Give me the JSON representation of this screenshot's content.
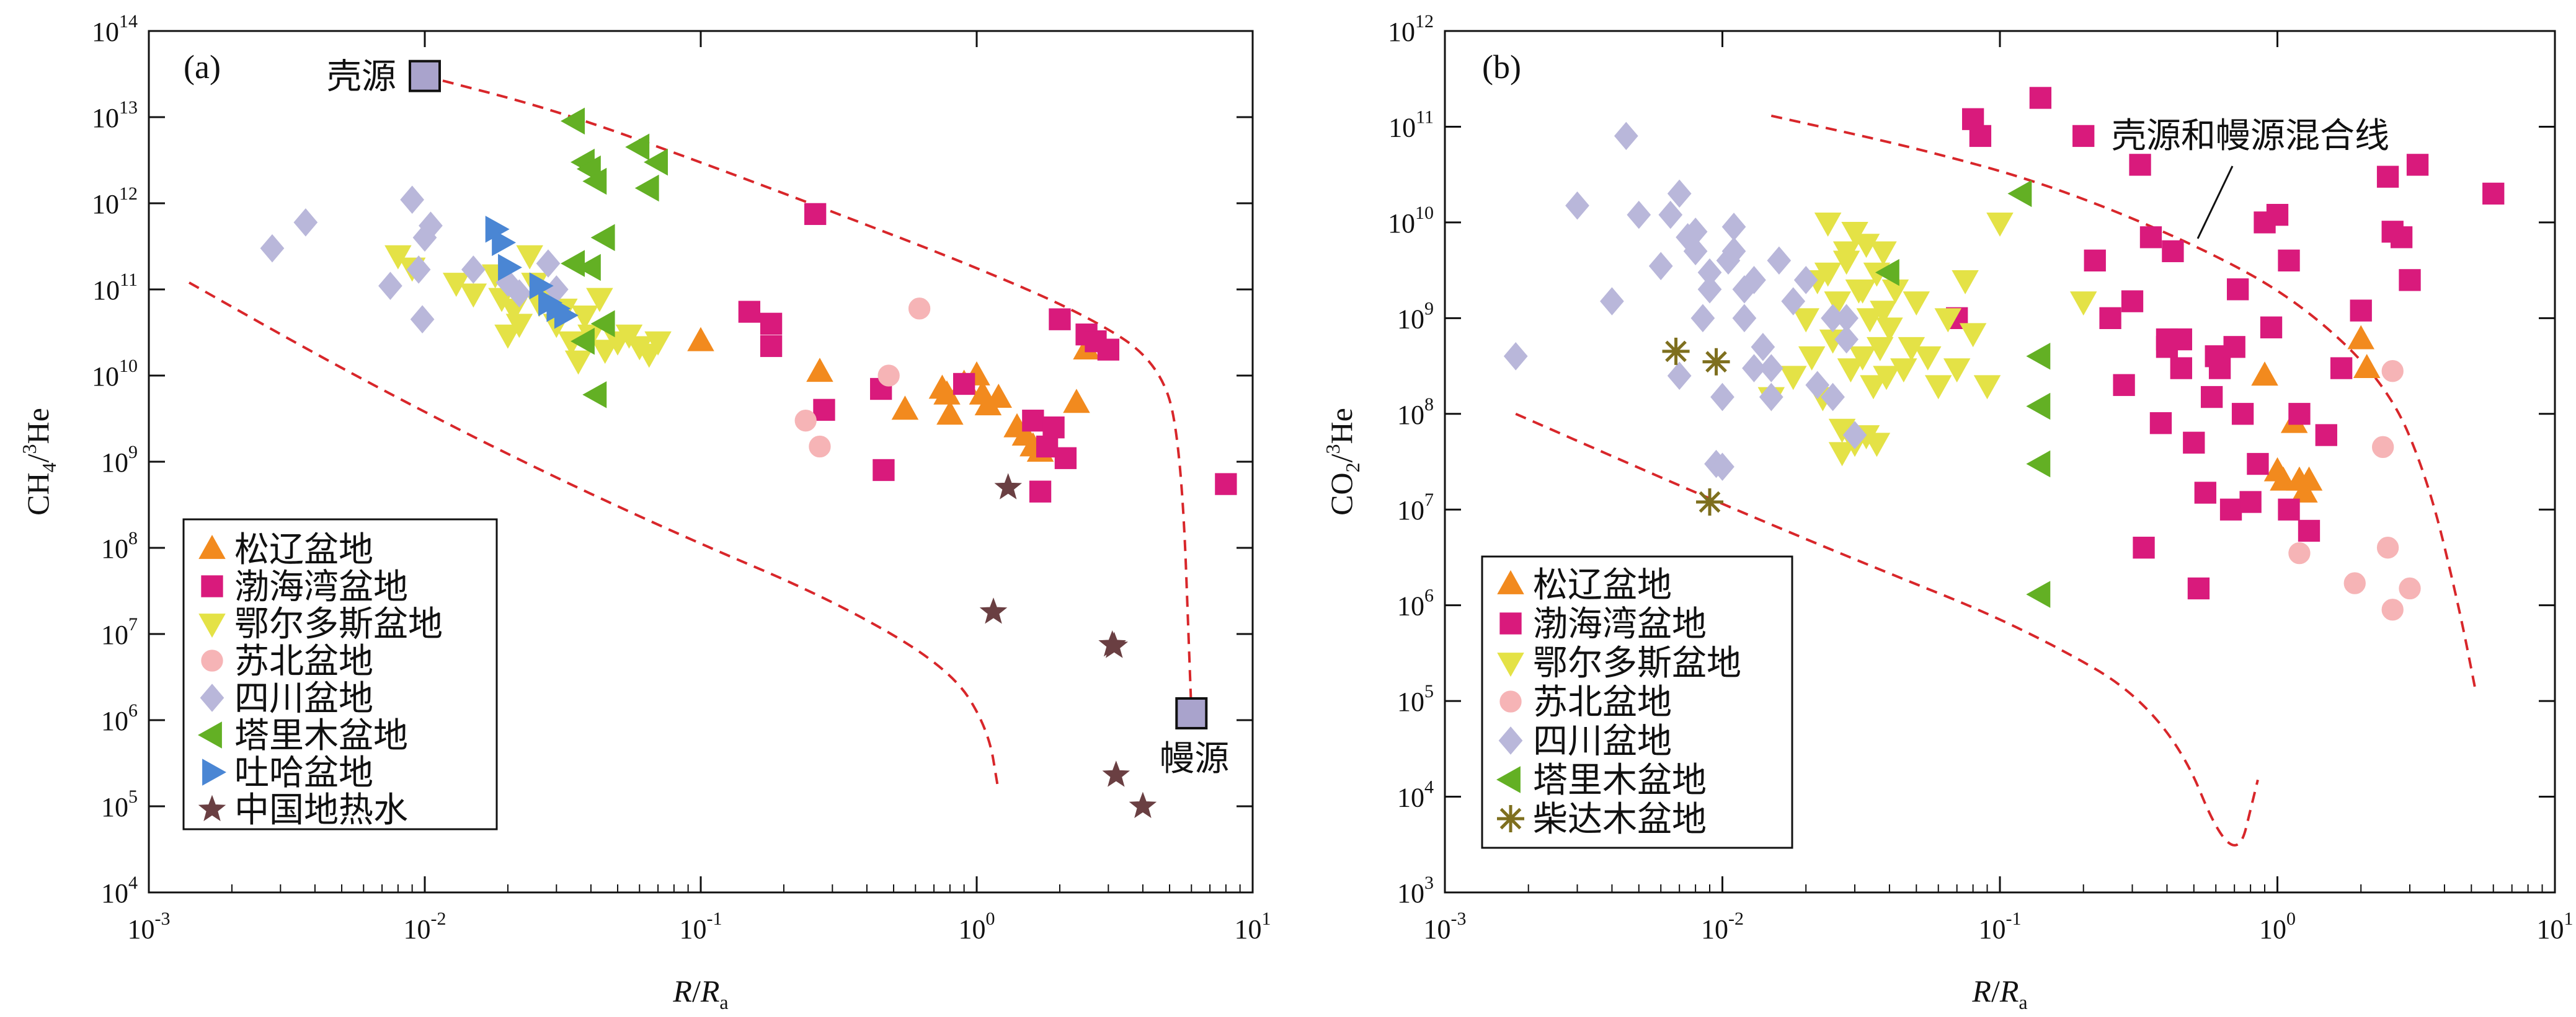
{
  "colors": {
    "songliao": "#F28A1E",
    "bohaiwan": "#D91A7C",
    "ordos": "#E4E246",
    "subei": "#F6B4B6",
    "sichuan": "#B9B7DA",
    "tarim": "#63B024",
    "tuha": "#4A86D4",
    "geothermal": "#6A3F42",
    "qaidam": "#7E6F1E",
    "endmember_fill": "#A9A3CC",
    "mixing_line": "#D8262A"
  },
  "chart_data": [
    {
      "type": "scatter",
      "panel": "(a)",
      "xlabel": "R/Ra",
      "ylabel": "CH4/3He",
      "xscale": "log",
      "yscale": "log",
      "xlim": [
        0.001,
        10
      ],
      "ylim": [
        10000,
        100000000000000
      ],
      "x_ticks": [
        {
          "base": "10",
          "exp": "-3"
        },
        {
          "base": "10",
          "exp": "-2"
        },
        {
          "base": "10",
          "exp": "-1"
        },
        {
          "base": "10",
          "exp": "0"
        },
        {
          "base": "10",
          "exp": "1"
        }
      ],
      "y_ticks": [
        {
          "base": "10",
          "exp": "4"
        },
        {
          "base": "10",
          "exp": "5"
        },
        {
          "base": "10",
          "exp": "6"
        },
        {
          "base": "10",
          "exp": "7"
        },
        {
          "base": "10",
          "exp": "8"
        },
        {
          "base": "10",
          "exp": "9"
        },
        {
          "base": "10",
          "exp": "10"
        },
        {
          "base": "10",
          "exp": "11"
        },
        {
          "base": "10",
          "exp": "12"
        },
        {
          "base": "10",
          "exp": "13"
        },
        {
          "base": "10",
          "exp": "14"
        }
      ],
      "grid": false,
      "legend_position": "bottom-left",
      "endmembers": [
        {
          "name": "壳源",
          "x": 0.01,
          "y": 30000000000000
        },
        {
          "name": "幔源",
          "x": 6,
          "y": 1200000
        }
      ],
      "mixing_lines": [
        {
          "x": [
            0.01,
            0.03,
            0.1,
            0.3,
            1,
            2.5,
            4.5,
            5.5,
            6
          ],
          "y": [
            30000000000000,
            12000000000000,
            3000000000000,
            800000000000,
            180000000000,
            50000000000,
            15000000000,
            2000000000,
            1200000
          ]
        },
        {
          "x": [
            0.0014,
            0.005,
            0.02,
            0.08,
            0.3,
            0.8,
            1.1,
            1.2
          ],
          "y": [
            120000000000,
            12000000000,
            1200000000,
            150000000,
            25000000,
            4000000,
            800000,
            150000
          ]
        }
      ],
      "series": [
        {
          "name": "松辽盆地",
          "marker": "triangle-up",
          "color_key": "songliao",
          "x": [
            0.1,
            0.27,
            0.55,
            0.75,
            0.8,
            0.9,
            1.0,
            1.05,
            1.1,
            1.2,
            1.4,
            1.5,
            1.6,
            1.7,
            0.78,
            2.3,
            2.5
          ],
          "y": [
            25000000000,
            11000000000,
            4000000000,
            7000000000,
            3500000000,
            8000000000,
            10000000000,
            6000000000,
            4500000000,
            5500000000,
            2500000000,
            2000000000,
            1500000000,
            1300000000,
            6000000000,
            4800000000,
            20000000000
          ]
        },
        {
          "name": "渤海湾盆地",
          "marker": "square",
          "color_key": "bohaiwan",
          "x": [
            0.15,
            0.18,
            0.18,
            0.26,
            0.28,
            0.45,
            0.46,
            0.9,
            1.6,
            1.7,
            1.8,
            1.9,
            2.0,
            2.1,
            2.5,
            2.7,
            3.0,
            8.0
          ],
          "y": [
            55000000000,
            40000000000,
            22000000000,
            750000000000,
            4000000000,
            7000000000,
            800000000,
            8000000000,
            3000000000,
            450000000,
            1500000000,
            2500000000,
            45000000000,
            1100000000,
            30000000000,
            25000000000,
            20000000000,
            550000000
          ]
        },
        {
          "name": "鄂尔多斯盆地",
          "marker": "triangle-down",
          "color_key": "ordos",
          "x": [
            0.008,
            0.009,
            0.013,
            0.015,
            0.018,
            0.019,
            0.02,
            0.021,
            0.022,
            0.024,
            0.025,
            0.026,
            0.028,
            0.03,
            0.032,
            0.034,
            0.036,
            0.038,
            0.04,
            0.043,
            0.045,
            0.05,
            0.055,
            0.06,
            0.065,
            0.07
          ],
          "y": [
            250000000000,
            180000000000,
            120000000000,
            90000000000,
            150000000000,
            80000000000,
            30000000000,
            60000000000,
            40000000000,
            250000000000,
            120000000000,
            70000000000,
            90000000000,
            40000000000,
            60000000000,
            25000000000,
            15000000000,
            50000000000,
            30000000000,
            80000000000,
            20000000000,
            25000000000,
            30000000000,
            22000000000,
            18000000000,
            25000000000
          ]
        },
        {
          "name": "苏北盆地",
          "marker": "circle",
          "color_key": "subei",
          "x": [
            0.24,
            0.27,
            0.48,
            0.62
          ],
          "y": [
            3000000000,
            1500000000,
            10000000000,
            60000000000
          ]
        },
        {
          "name": "四川盆地",
          "marker": "diamond",
          "color_key": "sichuan",
          "x": [
            0.0028,
            0.0037,
            0.0075,
            0.009,
            0.0095,
            0.0098,
            0.01,
            0.0105,
            0.015,
            0.02,
            0.022,
            0.028,
            0.03
          ],
          "y": [
            300000000000,
            600000000000,
            110000000000,
            1100000000000,
            170000000000,
            45000000000,
            400000000000,
            550000000000,
            170000000000,
            120000000000,
            90000000000,
            200000000000,
            100000000000
          ]
        },
        {
          "name": "塔里木盆地",
          "marker": "triangle-left",
          "color_key": "tarim",
          "x": [
            0.035,
            0.038,
            0.04,
            0.042,
            0.045,
            0.06,
            0.065,
            0.07,
            0.035,
            0.04,
            0.045,
            0.038,
            0.042
          ],
          "y": [
            9000000000000,
            3000000000000,
            2500000000000,
            1800000000000,
            400000000000,
            4500000000000,
            1500000000000,
            3000000000000,
            200000000000,
            180000000000,
            40000000000,
            25000000000,
            6000000000
          ]
        },
        {
          "name": "吐哈盆地",
          "marker": "triangle-right",
          "color_key": "tuha",
          "x": [
            0.018,
            0.019,
            0.02,
            0.026,
            0.028,
            0.03,
            0.032
          ],
          "y": [
            500000000000,
            350000000000,
            180000000000,
            110000000000,
            70000000000,
            60000000000,
            50000000000
          ]
        },
        {
          "name": "中国地热水",
          "marker": "star",
          "color_key": "geothermal",
          "x": [
            1.15,
            1.3,
            3.1,
            3.15,
            3.2,
            4.0
          ],
          "y": [
            18000000,
            500000000,
            7500000,
            7200000,
            230000,
            100000
          ]
        }
      ]
    },
    {
      "type": "scatter",
      "panel": "(b)",
      "xlabel": "R/Ra",
      "ylabel": "CO2/3He",
      "xscale": "log",
      "yscale": "log",
      "xlim": [
        0.001,
        10
      ],
      "ylim": [
        1000,
        1000000000000
      ],
      "x_ticks": [
        {
          "base": "10",
          "exp": "-3"
        },
        {
          "base": "10",
          "exp": "-2"
        },
        {
          "base": "10",
          "exp": "-1"
        },
        {
          "base": "10",
          "exp": "0"
        },
        {
          "base": "10",
          "exp": "1"
        }
      ],
      "y_ticks": [
        {
          "base": "10",
          "exp": "3"
        },
        {
          "base": "10",
          "exp": "4"
        },
        {
          "base": "10",
          "exp": "5"
        },
        {
          "base": "10",
          "exp": "6"
        },
        {
          "base": "10",
          "exp": "7"
        },
        {
          "base": "10",
          "exp": "8"
        },
        {
          "base": "10",
          "exp": "9"
        },
        {
          "base": "10",
          "exp": "10"
        },
        {
          "base": "10",
          "exp": "11"
        },
        {
          "base": "10",
          "exp": "12"
        }
      ],
      "grid": false,
      "legend_position": "bottom-left",
      "annotations": [
        {
          "text": "壳源和幔源混合线",
          "x": 0.4,
          "y": 40000000000
        }
      ],
      "mixing_lines": [
        {
          "x": [
            0.015,
            0.05,
            0.15,
            0.5,
            1.2,
            2.5,
            3.5,
            4.5,
            5.2
          ],
          "y": [
            130000000000,
            60000000000,
            25000000000,
            6000000000,
            1500000000,
            200000000,
            20000000,
            1000000,
            120000
          ]
        },
        {
          "x": [
            0.0018,
            0.008,
            0.03,
            0.12,
            0.4,
            0.7,
            0.85
          ],
          "y": [
            100000000,
            15000000,
            3000000,
            600000,
            80000,
            1500,
            15000
          ]
        }
      ],
      "series": [
        {
          "name": "松辽盆地",
          "marker": "triangle-up",
          "color_key": "songliao",
          "x": [
            1.0,
            1.05,
            1.15,
            1.2,
            1.25,
            1.3,
            2.0,
            2.1,
            0.9
          ],
          "y": [
            25000000,
            20000000,
            80000000,
            20000000,
            15000000,
            20000000,
            600000000,
            300000000,
            250000000
          ]
        },
        {
          "name": "渤海湾盆地",
          "marker": "square",
          "color_key": "bohaiwan",
          "x": [
            0.07,
            0.08,
            0.085,
            0.14,
            0.2,
            0.22,
            0.25,
            0.28,
            0.3,
            0.32,
            0.35,
            0.38,
            0.4,
            0.42,
            0.45,
            0.5,
            0.55,
            0.6,
            0.62,
            0.68,
            0.7,
            0.72,
            0.75,
            0.8,
            0.85,
            0.9,
            1.0,
            1.1,
            1.2,
            1.3,
            1.5,
            1.7,
            2.0,
            2.5,
            2.6,
            2.8,
            3.0,
            3.2,
            6.0,
            0.33,
            0.4,
            0.45,
            0.52,
            0.58,
            0.95,
            1.1
          ],
          "y": [
            1000000000,
            120000000000,
            80000000000,
            200000000000,
            80000000000,
            4000000000,
            1000000000,
            200000000,
            1500000000,
            40000000000,
            7000000000,
            80000000,
            500000000,
            5000000000,
            600000000,
            50000000,
            15000000,
            400000000,
            300000000,
            10000000,
            500000000,
            2000000000,
            100000000,
            12000000,
            30000000,
            10000000000,
            12000000000,
            4000000000,
            100000000,
            6000000,
            60000000,
            300000000,
            1200000000,
            30000000000,
            8000000000,
            7000000000,
            2500000000,
            40000000000,
            20000000000,
            4000000,
            600000000,
            300000000,
            1500000,
            150000000,
            800000000,
            10000000
          ]
        },
        {
          "name": "鄂尔多斯盆地",
          "marker": "triangle-down",
          "color_key": "ordos",
          "x": [
            0.015,
            0.018,
            0.02,
            0.021,
            0.022,
            0.023,
            0.024,
            0.025,
            0.026,
            0.027,
            0.028,
            0.029,
            0.03,
            0.031,
            0.032,
            0.033,
            0.034,
            0.035,
            0.036,
            0.037,
            0.038,
            0.039,
            0.04,
            0.042,
            0.045,
            0.048,
            0.05,
            0.055,
            0.06,
            0.065,
            0.07,
            0.075,
            0.08,
            0.09,
            0.1,
            0.2,
            0.027,
            0.03,
            0.033,
            0.036,
            0.024,
            0.028,
            0.032,
            0.038
          ],
          "y": [
            150000000,
            250000000,
            1000000000,
            400000000,
            2500000000,
            150000000,
            3000000000,
            600000000,
            1500000000,
            70000000,
            5000000000,
            300000000,
            8000000000,
            2000000000,
            400000000,
            6000000000,
            1000000000,
            200000000,
            3000000000,
            500000000,
            5000000000,
            250000000,
            800000000,
            2000000000,
            300000000,
            500000000,
            1500000000,
            400000000,
            200000000,
            1000000000,
            300000000,
            2500000000,
            700000000,
            200000000,
            10000000000,
            1500000000,
            40000000,
            50000000,
            60000000,
            50000000,
            10000000000,
            4000000000,
            2000000000,
            1200000000
          ]
        },
        {
          "name": "苏北盆地",
          "marker": "circle",
          "color_key": "subei",
          "x": [
            1.2,
            1.9,
            2.4,
            2.5,
            2.6,
            2.6,
            3.0
          ],
          "y": [
            3500000,
            1700000,
            45000000,
            4000000,
            900000,
            280000000,
            1500000
          ]
        },
        {
          "name": "四川盆地",
          "marker": "diamond",
          "color_key": "sichuan",
          "x": [
            0.0018,
            0.003,
            0.004,
            0.0045,
            0.005,
            0.006,
            0.0065,
            0.007,
            0.0075,
            0.008,
            0.0085,
            0.009,
            0.0095,
            0.01,
            0.0105,
            0.011,
            0.012,
            0.013,
            0.014,
            0.015,
            0.016,
            0.018,
            0.02,
            0.022,
            0.025,
            0.028,
            0.03,
            0.009,
            0.01,
            0.011,
            0.012,
            0.013,
            0.015,
            0.007,
            0.008,
            0.025,
            0.028
          ],
          "y": [
            400000000,
            15000000000,
            1500000000,
            80000000000,
            12000000000,
            3500000000,
            12000000000,
            250000000,
            7000000000,
            5000000000,
            1000000000,
            3000000000,
            30000000,
            28000000,
            4000000000,
            9000000000,
            2000000000,
            300000000,
            500000000,
            150000000,
            4000000000,
            1500000000,
            2500000000,
            200000000,
            1000000000,
            600000000,
            60000000,
            2000000000,
            150000000,
            5000000000,
            1000000000,
            2500000000,
            300000000,
            20000000000,
            8000000000,
            150000000,
            1000000000
          ]
        },
        {
          "name": "塔里木盆地",
          "marker": "triangle-left",
          "color_key": "tarim",
          "x": [
            0.12,
            0.04,
            0.14,
            0.14,
            0.14,
            0.14
          ],
          "y": [
            20000000000,
            3000000000,
            400000000,
            120000000,
            30000000,
            1300000
          ]
        },
        {
          "name": "柴达木盆地",
          "marker": "asterisk",
          "color_key": "qaidam",
          "x": [
            0.0068,
            0.0095,
            0.009
          ],
          "y": [
            450000000,
            350000000,
            12000000
          ]
        }
      ]
    }
  ]
}
